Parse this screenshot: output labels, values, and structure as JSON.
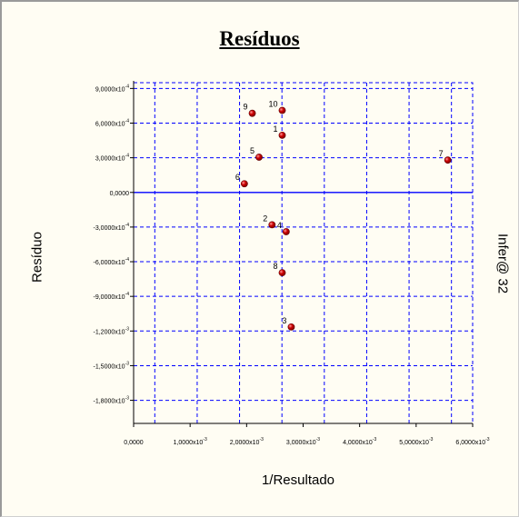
{
  "chart_data": {
    "type": "scatter",
    "title": "Resíduos",
    "xlabel": "1/Resultado",
    "ylabel": "Resíduo",
    "watermark": "Infer@ 32",
    "xlim": [
      0,
      0.006
    ],
    "ylim": [
      -0.002,
      0.00095
    ],
    "x_ticks": [
      {
        "value": 0,
        "mant": "0,0000",
        "exp": ""
      },
      {
        "value": 0.001,
        "mant": "1,0000x10",
        "exp": "-3"
      },
      {
        "value": 0.002,
        "mant": "2,0000x10",
        "exp": "-3"
      },
      {
        "value": 0.003,
        "mant": "3,0000x10",
        "exp": "-3"
      },
      {
        "value": 0.004,
        "mant": "4,0000x10",
        "exp": "-3"
      },
      {
        "value": 0.005,
        "mant": "5,0000x10",
        "exp": "-3"
      },
      {
        "value": 0.006,
        "mant": "6,0000x10",
        "exp": "-3"
      }
    ],
    "y_ticks": [
      {
        "value": 0.0009,
        "mant": "9,0000x10",
        "exp": "-4"
      },
      {
        "value": 0.0006,
        "mant": "6,0000x10",
        "exp": "-4"
      },
      {
        "value": 0.0003,
        "mant": "3,0000x10",
        "exp": "-4"
      },
      {
        "value": 0,
        "mant": "0,0000",
        "exp": ""
      },
      {
        "value": -0.0003,
        "mant": "-3,0000x10",
        "exp": "-4"
      },
      {
        "value": -0.0006,
        "mant": "-6,0000x10",
        "exp": "-4"
      },
      {
        "value": -0.0009,
        "mant": "-9,0000x10",
        "exp": "-4"
      },
      {
        "value": -0.0012,
        "mant": "-1,2000x10",
        "exp": "-3"
      },
      {
        "value": -0.0015,
        "mant": "-1,5000x10",
        "exp": "-3"
      },
      {
        "value": -0.0018,
        "mant": "-1,8000x10",
        "exp": "-3"
      }
    ],
    "grid": true,
    "colors": {
      "grid": "#0000ff",
      "zero_line": "#0000ff",
      "marker": "#cc0000",
      "background": "#fffdf3"
    },
    "points": [
      {
        "label": "1",
        "x": 0.00263,
        "y": 0.000495
      },
      {
        "label": "2",
        "x": 0.00245,
        "y": -0.00028
      },
      {
        "label": "3",
        "x": 0.00279,
        "y": -0.001165
      },
      {
        "label": "4",
        "x": 0.0027,
        "y": -0.00034
      },
      {
        "label": "5",
        "x": 0.00222,
        "y": 0.000305
      },
      {
        "label": "6",
        "x": 0.00196,
        "y": 7.5e-05
      },
      {
        "label": "7",
        "x": 0.00556,
        "y": 0.00028
      },
      {
        "label": "8",
        "x": 0.00263,
        "y": -0.000695
      },
      {
        "label": "9",
        "x": 0.0021,
        "y": 0.000685
      },
      {
        "label": "10",
        "x": 0.00263,
        "y": 0.00071
      }
    ]
  }
}
